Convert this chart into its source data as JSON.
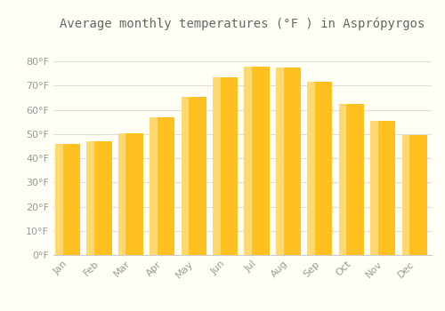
{
  "title": "Average monthly temperatures (°F ) in Asprópyrgos",
  "months": [
    "Jan",
    "Feb",
    "Mar",
    "Apr",
    "May",
    "Jun",
    "Jul",
    "Aug",
    "Sep",
    "Oct",
    "Nov",
    "Dec"
  ],
  "values": [
    46,
    47,
    50.5,
    57,
    65.5,
    73.5,
    78,
    77.5,
    71.5,
    62.5,
    55.5,
    49.5
  ],
  "bar_color_main": "#FFC020",
  "bar_color_light": "#FFD870",
  "background_color": "#FFFFF5",
  "grid_color": "#DDDDDD",
  "ylim": [
    0,
    90
  ],
  "yticks": [
    0,
    10,
    20,
    30,
    40,
    50,
    60,
    70,
    80
  ],
  "ytick_labels": [
    "0°F",
    "10°F",
    "20°F",
    "30°F",
    "40°F",
    "50°F",
    "60°F",
    "70°F",
    "80°F"
  ],
  "title_fontsize": 10,
  "tick_fontsize": 8,
  "text_color": "#999999"
}
